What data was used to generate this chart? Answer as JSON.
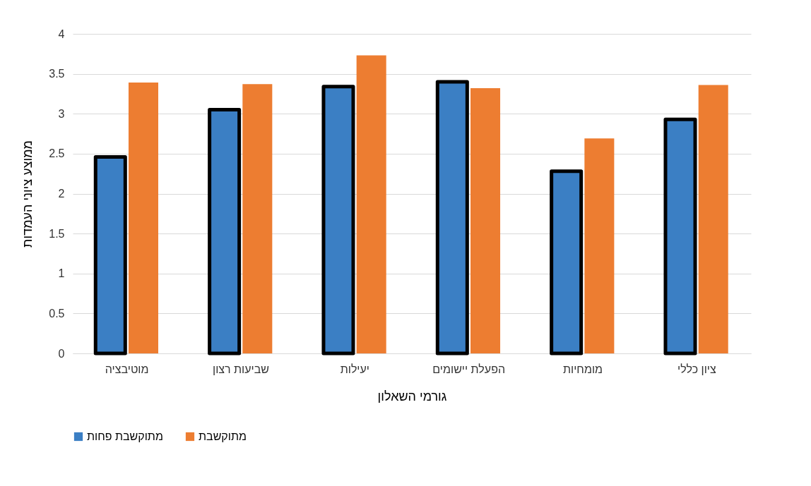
{
  "chart_data": {
    "type": "bar",
    "xlabel": "גורמי השאלון",
    "ylabel": "ממוצע ציוני העמדות",
    "categories": [
      "מוטיבציה",
      "שביעות רצון",
      "יעילות",
      "הפעלת יישומים",
      "מומחיות",
      "ציון כללי"
    ],
    "series": [
      {
        "name": "מתוקשבת פחות",
        "color": "#3b7fc4",
        "values": [
          2.46,
          3.05,
          3.34,
          3.4,
          2.28,
          2.93
        ]
      },
      {
        "name": "מתוקשבת",
        "color": "#ed7d31",
        "values": [
          3.39,
          3.37,
          3.73,
          3.32,
          2.69,
          3.36
        ]
      }
    ],
    "ylim": [
      0,
      4
    ],
    "yticks": [
      0,
      0.5,
      1,
      1.5,
      2,
      2.5,
      3,
      3.5,
      4
    ],
    "grid": "y",
    "legend": "bottom"
  }
}
